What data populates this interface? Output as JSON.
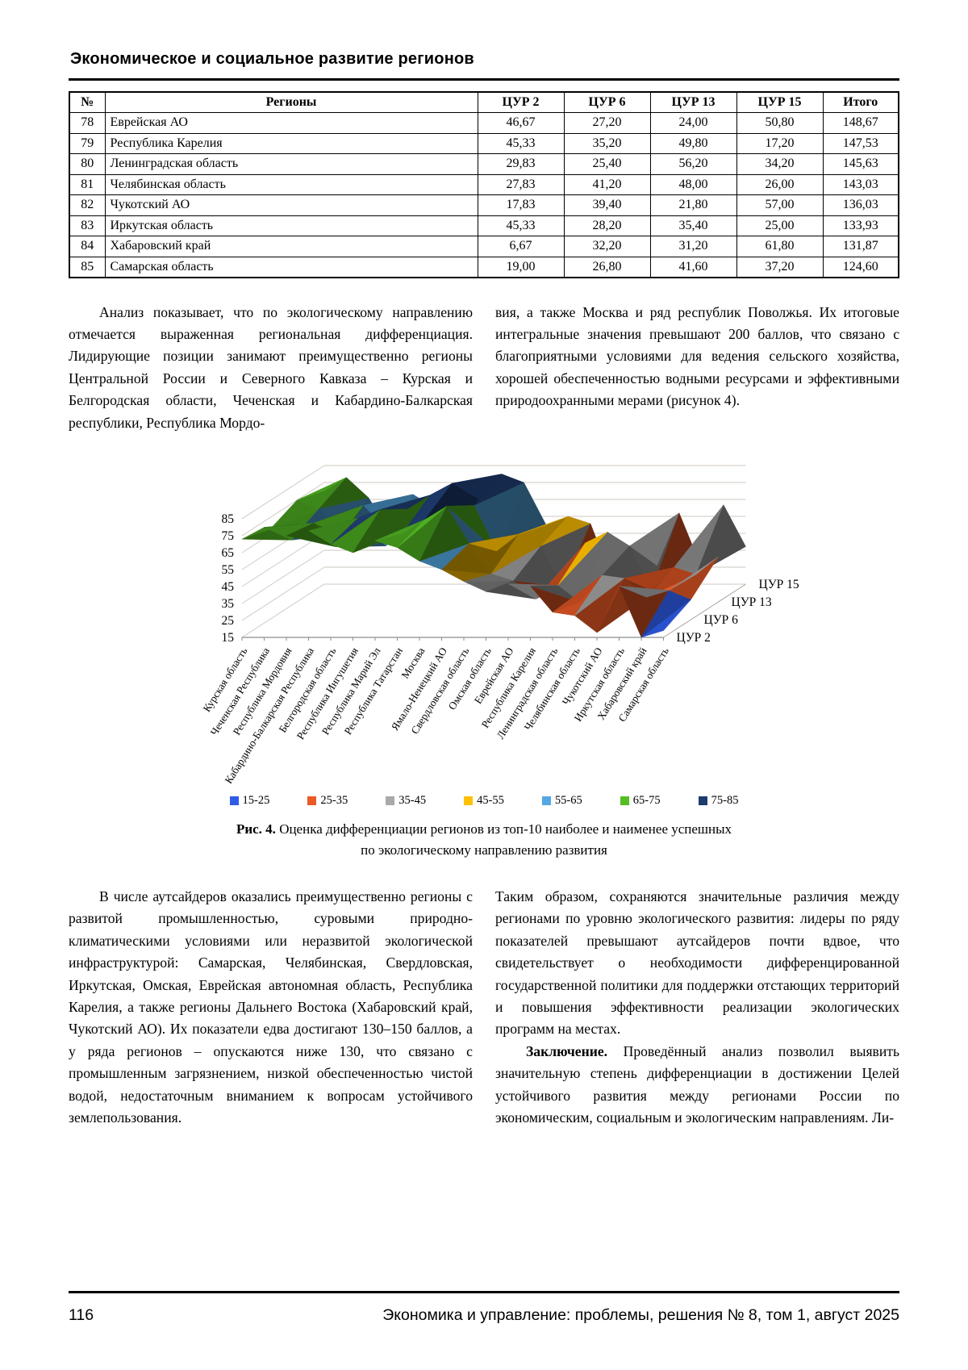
{
  "header": {
    "title": "Экономическое и социальное развитие регионов"
  },
  "table": {
    "headers": [
      "№",
      "Регионы",
      "ЦУР 2",
      "ЦУР 6",
      "ЦУР 13",
      "ЦУР 15",
      "Итого"
    ],
    "rows": [
      [
        "78",
        "Еврейская АО",
        "46,67",
        "27,20",
        "24,00",
        "50,80",
        "148,67"
      ],
      [
        "79",
        "Республика Карелия",
        "45,33",
        "35,20",
        "49,80",
        "17,20",
        "147,53"
      ],
      [
        "80",
        "Ленинградская область",
        "29,83",
        "25,40",
        "56,20",
        "34,20",
        "145,63"
      ],
      [
        "81",
        "Челябинская область",
        "27,83",
        "41,20",
        "48,00",
        "26,00",
        "143,03"
      ],
      [
        "82",
        "Чукотский АО",
        "17,83",
        "39,40",
        "21,80",
        "57,00",
        "136,03"
      ],
      [
        "83",
        "Иркутская область",
        "45,33",
        "28,20",
        "35,40",
        "25,00",
        "133,93"
      ],
      [
        "84",
        "Хабаровский край",
        "6,67",
        "32,20",
        "31,20",
        "61,80",
        "131,87"
      ],
      [
        "85",
        "Самарская область",
        "19,00",
        "26,80",
        "41,60",
        "37,20",
        "124,60"
      ]
    ]
  },
  "paragraphs": {
    "top_left": "Анализ показывает, что по экологическому направлению отмечается выраженная региональная дифференциация. Лидирующие позиции занимают преимущественно регионы Центральной России и Северного Кавказа – Курская и Белгородская области, Чеченская и Кабардино-Балкарская республики, Республика Мордо-",
    "top_right": "вия, а также Москва и ряд республик Поволжья. Их итоговые интегральные значения превышают 200 баллов, что связано с благоприятными условиями для ведения сельского хозяйства, хорошей обеспеченностью водными ресурсами и эффективными природоохранными мерами (рисунок 4).",
    "bottom_left": "В числе аутсайдеров оказались преимущественно регионы с развитой промышленностью, суровыми природно-климатическими условиями или неразвитой экологической инфраструктурой: Самарская, Челябинская, Свердловская, Иркутская, Омская, Еврейская автономная область, Республика Карелия, а также регионы Дальнего Востока (Хабаровский край, Чукотский АО). Их показатели едва достигают 130–150 баллов, а у ряда регионов – опускаются ниже 130, что связано с промышленным загрязнением, низкой обеспеченностью чистой водой, недостаточным вниманием к вопросам устойчивого землепользования.",
    "bottom_right_1": "Таким образом, сохраняются значительные различия между регионами по уровню экологического развития: лидеры по ряду показателей превышают аутсайдеров почти вдвое, что свидетельствует о необходимости дифференцированной государственной политики для поддержки отстающих территорий и повышения эффективности реализации экологических программ на местах.",
    "bottom_right_2_bold": "Заключение.",
    "bottom_right_2": " Проведённый анализ позволил выявить значительную степень дифференциации в достижении Целей устойчивого развития между регионами России по экономическим, социальным и экологическим направлениям. Ли-"
  },
  "figure": {
    "caption_bold": "Рис. 4.",
    "caption_text": " Оценка дифференциации регионов из топ-10 наиболее и наименее успешных",
    "caption_line2": "по экологическому направлению развития"
  },
  "chart_data": {
    "type": "surface3d",
    "categories": [
      "Курская область",
      "Чеченская Республика",
      "Республика Мордовия",
      "Кабардино-Балкарская Республика",
      "Белгородская область",
      "Республика Ингушетия",
      "Республика Марий Эл",
      "Республика Татарстан",
      "Москва",
      "Ямало-Ненецкий АО",
      "Свердловская область",
      "Омская область",
      "Еврейская АО",
      "Республика Карелия",
      "Ленинградская область",
      "Челябинская область",
      "Чукотский АО",
      "Иркутская область",
      "Хабаровский край",
      "Самарская область"
    ],
    "series": [
      {
        "name": "ЦУР 2",
        "values": [
          73,
          80,
          75,
          78,
          70,
          65,
          72,
          68,
          60,
          55,
          48,
          42,
          46.67,
          45.33,
          29.83,
          27.83,
          17.83,
          45.33,
          6.67,
          19.0
        ]
      },
      {
        "name": "ЦУР 6",
        "values": [
          68,
          62,
          72,
          58,
          75,
          80,
          66,
          74,
          82,
          60,
          42,
          38,
          27.2,
          35.2,
          25.4,
          41.2,
          39.4,
          28.2,
          32.2,
          26.8
        ]
      },
      {
        "name": "ЦУР 13",
        "values": [
          75,
          70,
          55,
          72,
          48,
          70,
          78,
          85,
          72,
          45,
          55,
          48,
          24.0,
          49.8,
          56.2,
          48.0,
          21.8,
          35.4,
          31.2,
          41.6
        ]
      },
      {
        "name": "ЦУР 15",
        "values": [
          70,
          78,
          66,
          45,
          68,
          60,
          72,
          65,
          80,
          75,
          50,
          55,
          50.8,
          17.2,
          34.2,
          26.0,
          57.0,
          25.0,
          61.8,
          37.2
        ]
      }
    ],
    "value_axis": {
      "min": 15,
      "max": 85,
      "step": 10,
      "ticks": [
        15,
        25,
        35,
        45,
        55,
        65,
        75,
        85
      ]
    },
    "legend_position": "bottom",
    "grid": true,
    "legend_bands": [
      {
        "label": "15-25",
        "color": "#2F5BE7"
      },
      {
        "label": "25-35",
        "color": "#EB5A26"
      },
      {
        "label": "35-45",
        "color": "#A9A9A9"
      },
      {
        "label": "45-55",
        "color": "#FFC000"
      },
      {
        "label": "55-65",
        "color": "#53A7E3"
      },
      {
        "label": "65-75",
        "color": "#55BE24"
      },
      {
        "label": "75-85",
        "color": "#1E3B6E"
      }
    ]
  },
  "footer": {
    "page_number": "116",
    "journal_line": "Экономика и управление: проблемы, решения № 8, том 1, август 2025"
  }
}
